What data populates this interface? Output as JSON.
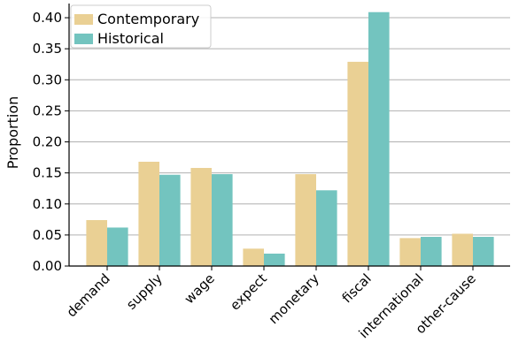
{
  "chart_data": {
    "type": "bar",
    "title": "",
    "xlabel": "",
    "ylabel": "Proportion",
    "ylim": [
      0,
      0.42
    ],
    "yticks": [
      "0.00",
      "0.05",
      "0.10",
      "0.15",
      "0.20",
      "0.25",
      "0.30",
      "0.35",
      "0.40"
    ],
    "grid": "horizontal",
    "legend_position": "top-left",
    "categories": [
      "demand",
      "supply",
      "wage",
      "expect",
      "monetary",
      "fiscal",
      "international",
      "other-cause"
    ],
    "series": [
      {
        "name": "Contemporary",
        "color": "#ead094",
        "values": [
          0.074,
          0.168,
          0.158,
          0.028,
          0.148,
          0.329,
          0.045,
          0.052
        ]
      },
      {
        "name": "Historical",
        "color": "#73c4bf",
        "values": [
          0.062,
          0.147,
          0.148,
          0.02,
          0.122,
          0.409,
          0.047,
          0.047
        ]
      }
    ]
  }
}
